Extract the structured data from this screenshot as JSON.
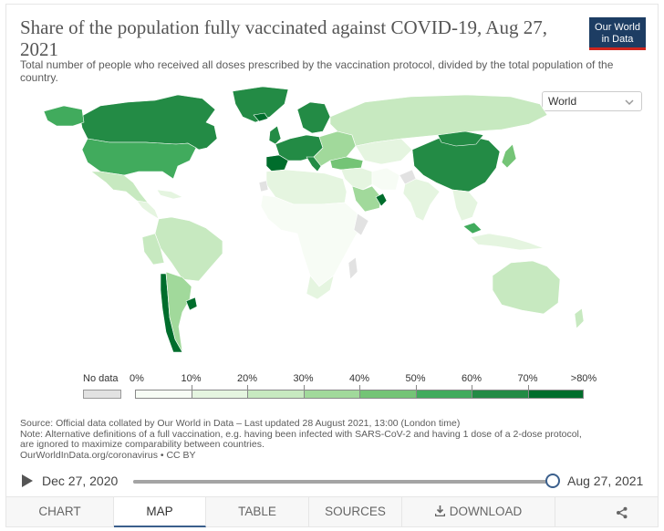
{
  "header": {
    "title": "Share of the population fully vaccinated against COVID-19, Aug 27, 2021",
    "subtitle": "Total number of people who received all doses prescribed by the vaccination protocol, divided by the total population of the country.",
    "logo_line1": "Our World",
    "logo_line2": "in Data"
  },
  "region_select": {
    "value": "World",
    "icon": "chevron-down-icon"
  },
  "map_data": {
    "type": "choropleth",
    "indicator": "Share of the population fully vaccinated",
    "date": "Aug 27, 2021",
    "palette": [
      "#f7fcf5",
      "#e5f5e0",
      "#c7e9c0",
      "#a1d99b",
      "#74c476",
      "#41ab5d",
      "#238b45",
      "#006d2c"
    ],
    "no_data_color": "#e2e2e2",
    "regions": {
      "canada": 6,
      "usa": 5,
      "mexico": 2,
      "central_america": 1,
      "greenland": 6,
      "south_america": 2,
      "chile": 7,
      "uruguay": 7,
      "argentina": 3,
      "brazil": 2,
      "uk_ireland": 6,
      "western_europe": 6,
      "spain_portugal": 7,
      "scandinavia": 6,
      "iceland": 7,
      "eastern_europe": 3,
      "russia": 2,
      "kazakhstan": 1,
      "turkey": 4,
      "middle_east": 1,
      "saudi_arabia": 3,
      "uae": 7,
      "iran": 0,
      "north_africa": 1,
      "subsaharan_africa": 0,
      "south_africa": 1,
      "india": 1,
      "southeast_asia": 1,
      "indonesia": 1,
      "malaysia": 5,
      "china": 6,
      "mongolia": 6,
      "japan": 4,
      "australia": 2,
      "new_zealand": 2,
      "no_data": [
        "western_sahara",
        "somalia",
        "eritrea",
        "afghanistan",
        "turkmenistan",
        "madagascar"
      ]
    }
  },
  "legend": {
    "no_data_label": "No data",
    "bins": [
      "0%",
      "10%",
      "20%",
      "30%",
      "40%",
      "50%",
      "60%",
      "70%",
      ">80%"
    ],
    "colors": [
      "#f7fcf5",
      "#e5f5e0",
      "#c7e9c0",
      "#a1d99b",
      "#74c476",
      "#41ab5d",
      "#238b45",
      "#006d2c"
    ]
  },
  "source": {
    "line1": "Source: Official data collated by Our World in Data – Last updated 28 August 2021, 13:00 (London time)",
    "line2": "Note: Alternative definitions of a full vaccination, e.g. having been infected with SARS-CoV-2 and having 1 dose of a 2-dose protocol,",
    "line3": "are ignored to maximize comparability between countries.",
    "line4": "OurWorldInData.org/coronavirus • CC BY"
  },
  "timeline": {
    "start": "Dec 27, 2020",
    "end": "Aug 27, 2021",
    "position_fraction": 1.0
  },
  "tabs": [
    {
      "label": "CHART",
      "active": false
    },
    {
      "label": "MAP",
      "active": true
    },
    {
      "label": "TABLE",
      "active": false
    },
    {
      "label": "SOURCES",
      "active": false
    },
    {
      "label": "DOWNLOAD",
      "active": false
    }
  ],
  "share_icon": "share-icon"
}
